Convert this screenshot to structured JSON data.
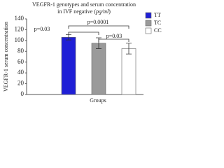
{
  "chart_data": {
    "type": "bar",
    "title": [
      "VEGFR-1 genotypes and serum concentration",
      "in IVF negative (",
      "pg/ml",
      ")"
    ],
    "x_label": "Groups",
    "y_label": "VEGFR-1 serum concentration",
    "series": [
      {
        "name": "TT",
        "color": "#1f1fd6",
        "values": [
          106
        ],
        "errors": [
          5
        ]
      },
      {
        "name": "TC",
        "color": "#9a9a9a",
        "values": [
          95
        ],
        "errors": [
          10
        ]
      },
      {
        "name": "CC",
        "color": "#ffffff",
        "values": [
          85
        ],
        "errors": [
          10
        ]
      }
    ],
    "annotations": [
      "p=0.0001",
      "p=0.03",
      "p=0.03"
    ],
    "ylim": [
      0,
      140
    ],
    "yticks": [
      0,
      20,
      40,
      60,
      80,
      100,
      120,
      140
    ],
    "grid": false,
    "legend": "right"
  }
}
